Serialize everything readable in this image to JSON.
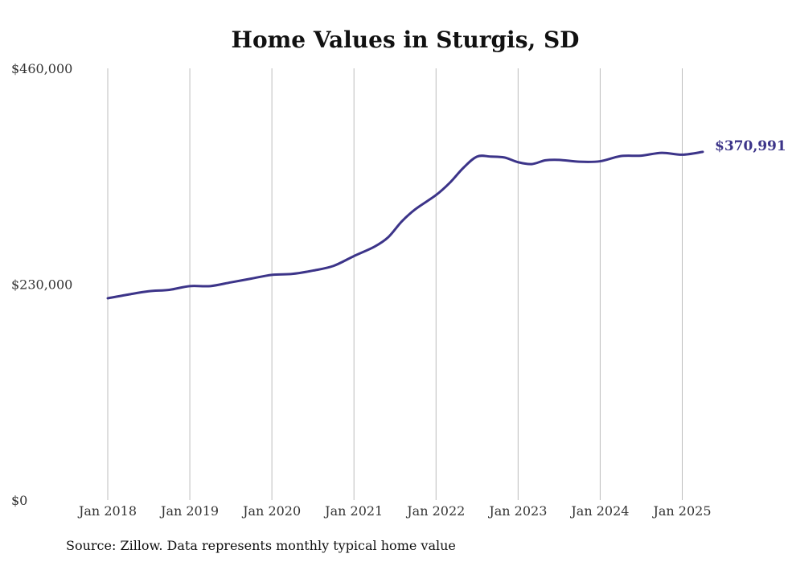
{
  "chart_data": {
    "type": "line",
    "title": "Home Values in Sturgis, SD",
    "source": "Source: Zillow. Data represents monthly typical home value",
    "xlabel": "",
    "ylabel": "",
    "ylim": [
      0,
      460000
    ],
    "y_ticks": [
      {
        "value": 0,
        "label": "$0"
      },
      {
        "value": 230000,
        "label": "$230,000"
      },
      {
        "value": 460000,
        "label": "$460,000"
      }
    ],
    "x_ticks": [
      {
        "value": "2018-01",
        "label": "Jan 2018"
      },
      {
        "value": "2019-01",
        "label": "Jan 2019"
      },
      {
        "value": "2020-01",
        "label": "Jan 2020"
      },
      {
        "value": "2021-01",
        "label": "Jan 2021"
      },
      {
        "value": "2022-01",
        "label": "Jan 2022"
      },
      {
        "value": "2023-01",
        "label": "Jan 2023"
      },
      {
        "value": "2024-01",
        "label": "Jan 2024"
      },
      {
        "value": "2025-01",
        "label": "Jan 2025"
      }
    ],
    "x_range": [
      "2018-01",
      "2025-04"
    ],
    "grid": "vertical",
    "end_label": "$370,991",
    "line_color": "#3c3489",
    "series": [
      {
        "values": [
          {
            "x": "2018-01",
            "y": 215000
          },
          {
            "x": "2018-04",
            "y": 219000
          },
          {
            "x": "2018-07",
            "y": 222500
          },
          {
            "x": "2018-10",
            "y": 224000
          },
          {
            "x": "2019-01",
            "y": 228000
          },
          {
            "x": "2019-04",
            "y": 228000
          },
          {
            "x": "2019-07",
            "y": 232000
          },
          {
            "x": "2019-10",
            "y": 236000
          },
          {
            "x": "2020-01",
            "y": 240000
          },
          {
            "x": "2020-04",
            "y": 241000
          },
          {
            "x": "2020-07",
            "y": 244500
          },
          {
            "x": "2020-10",
            "y": 249500
          },
          {
            "x": "2021-01",
            "y": 260000
          },
          {
            "x": "2021-04",
            "y": 270000
          },
          {
            "x": "2021-06",
            "y": 280000
          },
          {
            "x": "2021-08",
            "y": 297000
          },
          {
            "x": "2021-10",
            "y": 310000
          },
          {
            "x": "2022-01",
            "y": 325000
          },
          {
            "x": "2022-03",
            "y": 338000
          },
          {
            "x": "2022-05",
            "y": 354000
          },
          {
            "x": "2022-07",
            "y": 366000
          },
          {
            "x": "2022-09",
            "y": 366000
          },
          {
            "x": "2022-11",
            "y": 365000
          },
          {
            "x": "2023-01",
            "y": 360000
          },
          {
            "x": "2023-03",
            "y": 358000
          },
          {
            "x": "2023-05",
            "y": 362000
          },
          {
            "x": "2023-07",
            "y": 362500
          },
          {
            "x": "2023-10",
            "y": 360500
          },
          {
            "x": "2024-01",
            "y": 361000
          },
          {
            "x": "2024-04",
            "y": 366500
          },
          {
            "x": "2024-07",
            "y": 367000
          },
          {
            "x": "2024-10",
            "y": 370000
          },
          {
            "x": "2025-01",
            "y": 368000
          },
          {
            "x": "2025-04",
            "y": 370991
          }
        ]
      }
    ]
  }
}
